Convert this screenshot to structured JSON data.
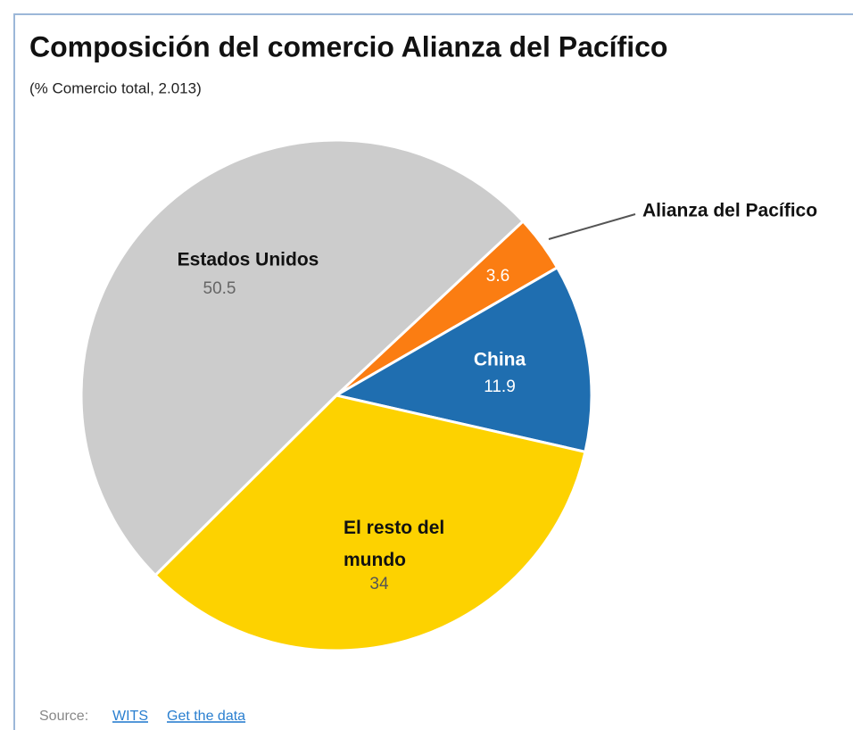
{
  "chart_data": {
    "type": "pie",
    "title": "Composición del comercio Alianza del Pacífico",
    "subtitle": "(% Comercio total, 2.013)",
    "categories": [
      "Alianza del Pacífico",
      "China",
      "El resto del mundo",
      "Estados Unidos"
    ],
    "values": [
      3.6,
      11.9,
      34,
      50.5
    ],
    "colors": [
      "#fb7d12",
      "#1f6eb0",
      "#fdd200",
      "#cccccc"
    ],
    "source_label": "Source:",
    "source_links": [
      "WITS",
      "Get the data"
    ]
  }
}
